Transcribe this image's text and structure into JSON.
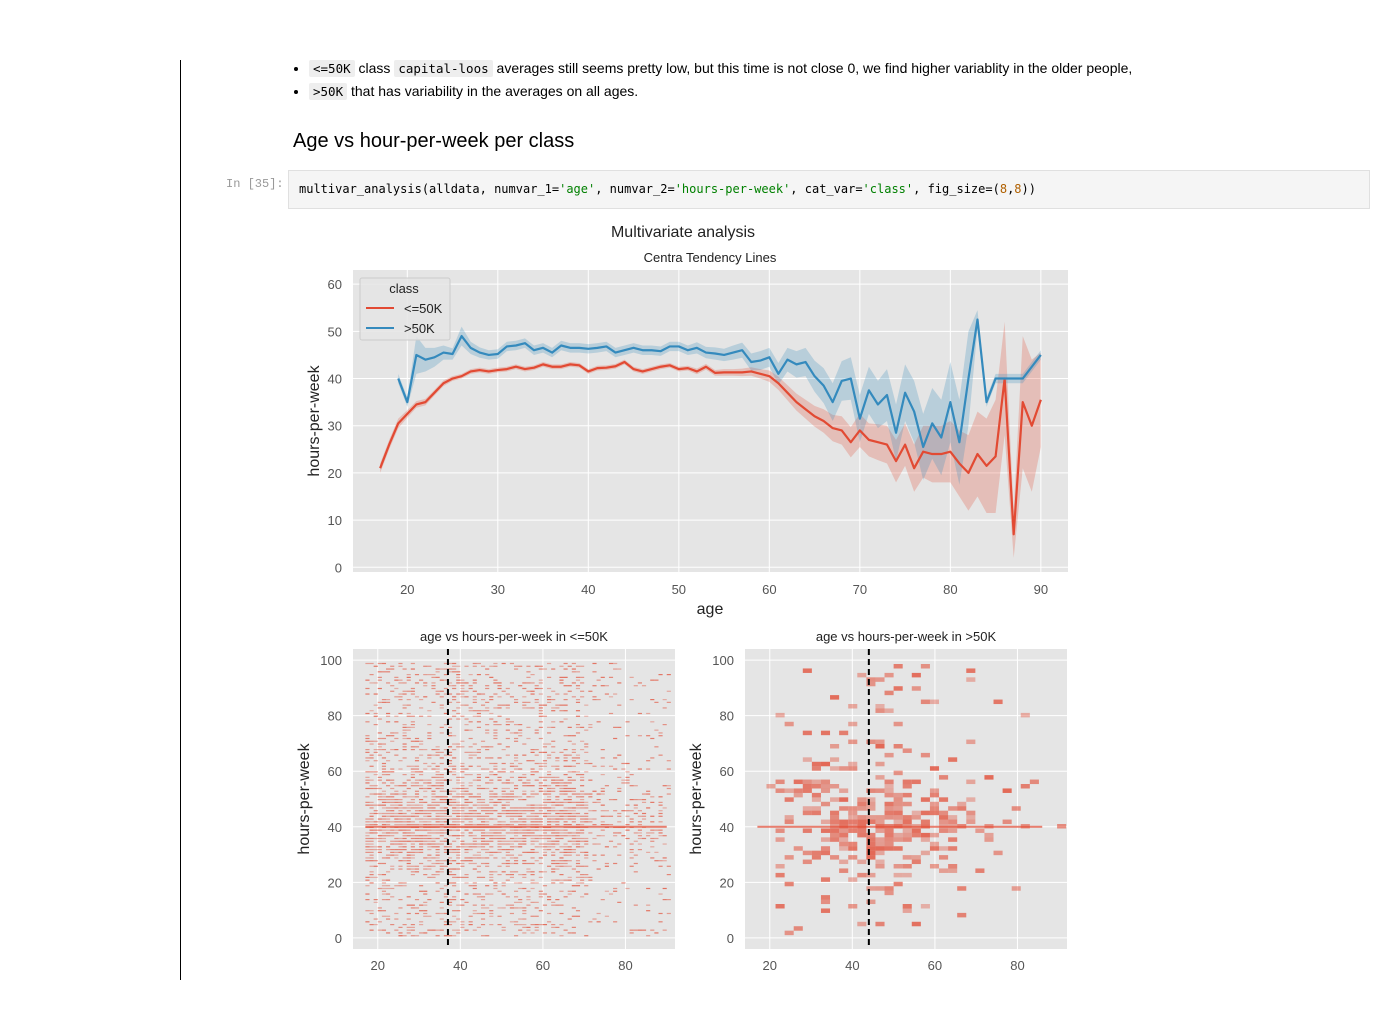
{
  "markdown": {
    "bullets": [
      {
        "code1": "<=50K",
        "mid1": " class ",
        "code2": "capital-loos",
        "text": " averages still seems pretty low, but this time is not close 0, we find higher variablity in the older people,"
      },
      {
        "code1": ">50K",
        "text": " that has variability in the averages on all ages."
      }
    ],
    "heading": "Age vs hour-per-week per class"
  },
  "cell": {
    "prompt": "In [35]:",
    "code_tokens": [
      {
        "t": "multivar_analysis(alldata, numvar_1=",
        "c": ""
      },
      {
        "t": "'age'",
        "c": "str"
      },
      {
        "t": ", numvar_2=",
        "c": ""
      },
      {
        "t": "'hours-per-week'",
        "c": "str"
      },
      {
        "t": ", cat_var=",
        "c": ""
      },
      {
        "t": "'class'",
        "c": "str"
      },
      {
        "t": ", fig_size=(",
        "c": ""
      },
      {
        "t": "8",
        "c": "num"
      },
      {
        "t": ",",
        "c": ""
      },
      {
        "t": "8",
        "c": "num"
      },
      {
        "t": "))",
        "c": ""
      }
    ]
  },
  "colors": {
    "red": "#e24a33",
    "blue": "#348abd",
    "panel": "#e5e5e5",
    "grid": "#ffffff",
    "text": "#555555"
  },
  "chart_data": [
    {
      "type": "line",
      "suptitle": "Multivariate analysis",
      "title": "Centra Tendency Lines",
      "xlabel": "age",
      "ylabel": "hours-per-week",
      "xlim": [
        14,
        93
      ],
      "ylim": [
        -1,
        63
      ],
      "xticks": [
        20,
        30,
        40,
        50,
        60,
        70,
        80,
        90
      ],
      "yticks": [
        0,
        10,
        20,
        30,
        40,
        50,
        60
      ],
      "legend": {
        "title": "class",
        "placement": "top-left"
      },
      "series": [
        {
          "name": "<=50K",
          "color": "#e24a33",
          "x": [
            17,
            18,
            19,
            20,
            21,
            22,
            23,
            24,
            25,
            26,
            27,
            28,
            29,
            30,
            31,
            32,
            33,
            34,
            35,
            36,
            37,
            38,
            39,
            40,
            41,
            42,
            43,
            44,
            45,
            46,
            47,
            48,
            49,
            50,
            51,
            52,
            53,
            54,
            55,
            56,
            57,
            58,
            59,
            60,
            61,
            62,
            63,
            64,
            65,
            66,
            67,
            68,
            69,
            70,
            71,
            72,
            73,
            74,
            75,
            76,
            77,
            78,
            79,
            80,
            81,
            82,
            83,
            84,
            85,
            86,
            87,
            88,
            89,
            90
          ],
          "y": [
            21,
            26,
            30.5,
            32.5,
            34.5,
            35,
            37,
            39,
            40,
            40.5,
            41.5,
            41.8,
            41.5,
            41.8,
            42,
            42.5,
            42,
            42.3,
            43,
            42.5,
            42.5,
            43,
            42.8,
            41.5,
            42.2,
            42.3,
            42.6,
            43.5,
            42,
            41.5,
            42,
            42.5,
            42.8,
            42,
            42.2,
            41.5,
            42.5,
            41.2,
            41.3,
            41.3,
            41.3,
            41.5,
            41,
            40.5,
            39,
            37,
            35,
            33.5,
            32,
            31,
            29.5,
            29,
            26.5,
            29,
            27,
            26.5,
            26,
            22.5,
            26,
            21,
            24.5,
            24,
            24,
            24.5,
            22,
            20,
            24,
            21.5,
            23.5,
            40,
            7,
            35,
            30,
            35.5
          ],
          "band": [
            1,
            1,
            1,
            0.8,
            0.7,
            0.7,
            0.6,
            0.6,
            0.5,
            0.5,
            0.5,
            0.5,
            0.5,
            0.5,
            0.5,
            0.5,
            0.5,
            0.5,
            0.5,
            0.5,
            0.5,
            0.5,
            0.5,
            0.5,
            0.5,
            0.5,
            0.5,
            0.5,
            0.5,
            0.5,
            0.5,
            0.5,
            0.5,
            0.5,
            0.5,
            0.6,
            0.6,
            0.6,
            0.7,
            0.7,
            0.8,
            0.9,
            1,
            1.2,
            1.4,
            1.6,
            1.8,
            2,
            2.2,
            2.5,
            2.8,
            3,
            3.2,
            3.5,
            3.5,
            3.8,
            4,
            4.5,
            4.5,
            5,
            5.5,
            6,
            6,
            6.5,
            7,
            8,
            9,
            10,
            12,
            12,
            5,
            14,
            14,
            10
          ]
        },
        {
          "name": ">50K",
          "color": "#348abd",
          "x": [
            19,
            20,
            21,
            22,
            23,
            24,
            25,
            26,
            27,
            28,
            29,
            30,
            31,
            32,
            33,
            34,
            35,
            36,
            37,
            38,
            39,
            40,
            41,
            42,
            43,
            44,
            45,
            46,
            47,
            48,
            49,
            50,
            51,
            52,
            53,
            54,
            55,
            56,
            57,
            58,
            59,
            60,
            61,
            62,
            63,
            64,
            65,
            66,
            67,
            68,
            69,
            70,
            71,
            72,
            73,
            74,
            75,
            76,
            77,
            78,
            79,
            80,
            81,
            82,
            83,
            84,
            85,
            86,
            87,
            88,
            89,
            90
          ],
          "y": [
            40,
            35,
            45,
            44,
            44.5,
            45.5,
            45.2,
            49,
            46.5,
            45.5,
            45,
            45.2,
            46.8,
            47,
            47.5,
            46,
            46.5,
            45.5,
            47,
            46.5,
            46.5,
            46.3,
            46.5,
            46.8,
            45.5,
            46,
            46.5,
            46,
            46,
            45.8,
            46.8,
            46.8,
            46,
            46.5,
            45.5,
            45.3,
            45,
            45.5,
            46,
            43.5,
            43.8,
            44.5,
            41,
            44,
            43,
            43.5,
            40.5,
            38.5,
            35,
            39.5,
            40,
            31.5,
            37.5,
            34.5,
            36.5,
            28.5,
            37,
            33,
            25.5,
            30.5,
            27.5,
            35,
            26.5,
            40,
            52.5,
            35,
            40,
            40,
            40,
            40,
            42.5,
            45
          ],
          "band": [
            1,
            1,
            4,
            2.5,
            2,
            1.5,
            1.2,
            2,
            1.3,
            1.1,
            1,
            1,
            1,
            1,
            1,
            1,
            1,
            1,
            1,
            1,
            1,
            1,
            1,
            1,
            1,
            1,
            1,
            1,
            1,
            1,
            1,
            1,
            1,
            1.2,
            1.2,
            1.3,
            1.3,
            1.5,
            1.6,
            1.8,
            2,
            2,
            2.3,
            2.5,
            2.8,
            3,
            3.3,
            3.7,
            4,
            4.2,
            4.5,
            5,
            5,
            5,
            5.5,
            6,
            6,
            6.5,
            7,
            7.5,
            8,
            8.5,
            9,
            10,
            2,
            1,
            1,
            1,
            1,
            1,
            1,
            1
          ]
        }
      ]
    },
    {
      "type": "heatmap",
      "title": "age vs hours-per-week in <=50K",
      "xlabel": "",
      "ylabel": "hours-per-week",
      "xlim": [
        14,
        92
      ],
      "ylim": [
        -4,
        104
      ],
      "xticks": [
        20,
        40,
        60,
        80
      ],
      "yticks": [
        0,
        20,
        40,
        60,
        80,
        100
      ],
      "vline": 37,
      "color": "#e24a33"
    },
    {
      "type": "heatmap",
      "title": "age vs hours-per-week in >50K",
      "xlabel": "",
      "ylabel": "hours-per-week",
      "xlim": [
        14,
        92
      ],
      "ylim": [
        -4,
        104
      ],
      "xticks": [
        20,
        40,
        60,
        80
      ],
      "yticks": [
        0,
        20,
        40,
        60,
        80,
        100
      ],
      "vline": 44,
      "color": "#e24a33"
    }
  ]
}
